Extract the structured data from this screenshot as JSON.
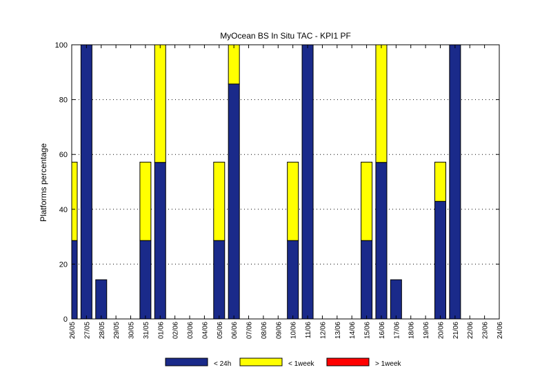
{
  "chart_data": {
    "type": "bar",
    "stacked": true,
    "title": "MyOcean  BS In Situ TAC - KPI1  PF",
    "xlabel": "",
    "ylabel": "Platforms percentage",
    "ylim": [
      0,
      100
    ],
    "yticks": [
      0,
      20,
      40,
      60,
      80,
      100
    ],
    "grid": "horizontal dotted",
    "legend_position": "bottom",
    "categories": [
      "26/05",
      "27/05",
      "28/05",
      "29/05",
      "30/05",
      "31/05",
      "01/06",
      "02/06",
      "03/06",
      "04/06",
      "05/06",
      "06/06",
      "07/06",
      "08/06",
      "09/06",
      "10/06",
      "11/06",
      "12/06",
      "13/06",
      "14/06",
      "15/06",
      "16/06",
      "17/06",
      "18/06",
      "19/06",
      "20/06",
      "21/06",
      "22/06",
      "23/06",
      "24/06"
    ],
    "series": [
      {
        "name": "< 24h",
        "color": "#1a2a8a",
        "values": [
          28.6,
          100,
          14.3,
          0,
          0,
          28.6,
          57.1,
          0,
          0,
          0,
          28.6,
          85.7,
          0,
          0,
          0,
          28.6,
          100,
          0,
          0,
          0,
          28.6,
          57.1,
          14.3,
          0,
          0,
          42.9,
          100,
          0,
          0,
          0
        ]
      },
      {
        "name": "< 1week",
        "color": "#ffff00",
        "values": [
          28.6,
          0,
          0,
          0,
          0,
          28.6,
          42.9,
          0,
          0,
          0,
          28.6,
          14.3,
          0,
          0,
          0,
          28.6,
          0,
          0,
          0,
          0,
          28.6,
          42.9,
          0,
          0,
          0,
          14.3,
          0,
          0,
          0,
          0
        ]
      },
      {
        "name": "> 1week",
        "color": "#ff0000",
        "values": [
          0,
          0,
          0,
          0,
          0,
          0,
          0,
          0,
          0,
          0,
          0,
          0,
          0,
          0,
          0,
          0,
          0,
          0,
          0,
          0,
          0,
          0,
          0,
          0,
          0,
          0,
          0,
          0,
          0,
          0
        ]
      }
    ]
  }
}
